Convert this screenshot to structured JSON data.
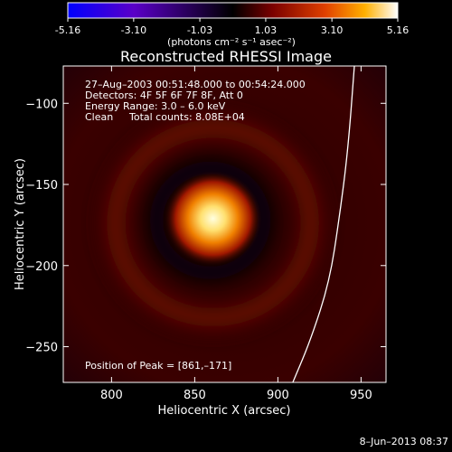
{
  "colorbar": {
    "min": -5.16,
    "max": 5.16,
    "tick_labels": [
      "-5.16",
      "-3.10",
      "-1.03",
      "1.03",
      "3.10",
      "5.16"
    ],
    "tick_values": [
      -5.16,
      -3.1,
      -1.03,
      1.03,
      3.1,
      5.16
    ],
    "unit_label": "(photons cm⁻² s⁻¹ asec⁻²)",
    "colors": [
      "#0000ff",
      "#5a00c8",
      "#000000",
      "#7a0000",
      "#e04000",
      "#ffb000",
      "#ffffff"
    ]
  },
  "chart_data": {
    "type": "heatmap",
    "title": "Reconstructed RHESSI Image",
    "xlabel": "Heliocentric X (arcsec)",
    "ylabel": "Heliocentric Y (arcsec)",
    "xlim": [
      771,
      965
    ],
    "ylim": [
      -272,
      -77
    ],
    "x_ticks": [
      800,
      850,
      900,
      950
    ],
    "y_ticks": [
      -100,
      -150,
      -200,
      -250
    ],
    "x_tick_labels": [
      "800",
      "850",
      "900",
      "950"
    ],
    "y_tick_labels": [
      "−100",
      "−150",
      "−200",
      "−250"
    ],
    "peak": {
      "x": 861,
      "y": -171,
      "value": 5.16
    },
    "ring": {
      "center_x": 861,
      "center_y": -171,
      "radius_arcsec": 56,
      "value": 1.1
    },
    "limb_curve": [
      {
        "x": 909,
        "y": -272
      },
      {
        "x": 920,
        "y": -245
      },
      {
        "x": 931,
        "y": -210
      },
      {
        "x": 937,
        "y": -170
      },
      {
        "x": 942,
        "y": -130
      },
      {
        "x": 946,
        "y": -77
      }
    ],
    "grid": false,
    "annotations": {
      "time_range": "27–Aug–2003 00:51:48.000 to 00:54:24.000",
      "detectors": "Detectors: 4F 5F 6F 7F 8F, Att 0",
      "energy_range": "Energy Range: 3.0 – 6.0 keV",
      "clean_label": "Clean",
      "total_counts": "Total counts: 8.08E+04",
      "peak_position": "Position of Peak = [861,–171]"
    }
  },
  "timestamp": "8–Jun–2013 08:37",
  "colors": {
    "background": "#000000",
    "foreground": "#ffffff",
    "limb_line": "#ffffff"
  }
}
